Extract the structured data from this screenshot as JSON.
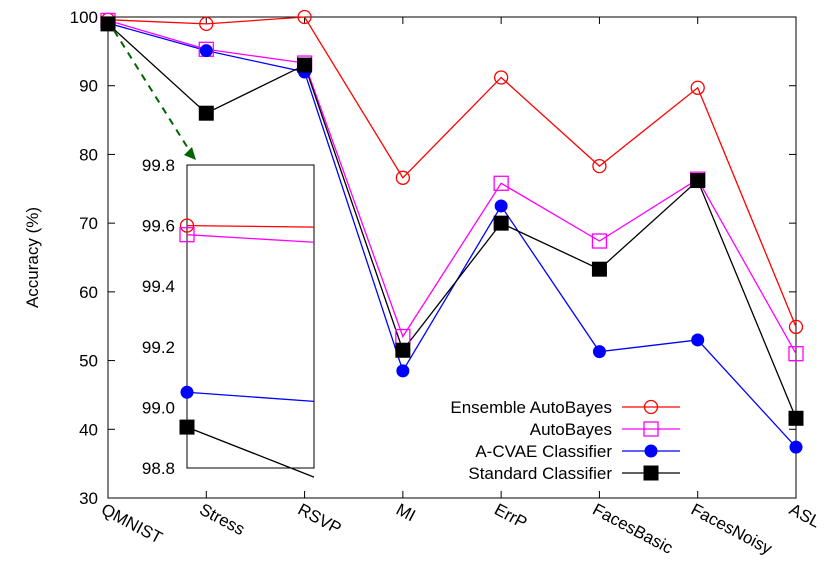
{
  "chart_data": {
    "type": "line",
    "ylabel": "Accuracy (%)",
    "ylim": [
      30,
      100
    ],
    "yticks": [
      "30",
      "40",
      "50",
      "60",
      "70",
      "80",
      "90",
      "100"
    ],
    "categories": [
      "QMNIST",
      "Stress",
      "RSVP",
      "MI",
      "ErrP",
      "FacesBasic",
      "FacesNoisy",
      "ASL"
    ],
    "series": [
      {
        "name": "Ensemble AutoBayes",
        "color": "#ff0000",
        "marker": "open-circle",
        "values": [
          99.6,
          99.0,
          100.0,
          76.6,
          91.2,
          78.3,
          89.7,
          54.9
        ]
      },
      {
        "name": "AutoBayes",
        "color": "#ff00ff",
        "marker": "open-square",
        "values": [
          99.5,
          95.3,
          93.3,
          53.5,
          75.8,
          67.4,
          76.4,
          51.0
        ]
      },
      {
        "name": "A-CVAE Classifier",
        "color": "#0000ff",
        "marker": "filled-circle",
        "values": [
          99.1,
          95.1,
          92.0,
          48.5,
          72.5,
          51.3,
          53.0,
          37.4
        ]
      },
      {
        "name": "Standard Classifier",
        "color": "#000000",
        "marker": "filled-square",
        "values": [
          99.0,
          86.0,
          93.0,
          51.5,
          70.0,
          63.3,
          76.2,
          41.6
        ]
      }
    ],
    "legend_position": "bottom-right",
    "inset": {
      "ylim": [
        98.8,
        99.8
      ],
      "yticks": [
        "98.8",
        "99.0",
        "99.2",
        "99.4",
        "99.6",
        "99.8"
      ],
      "values": [
        [
          99.6,
          99.595
        ],
        [
          99.57,
          99.545
        ],
        [
          99.05,
          99.02
        ],
        [
          98.935,
          98.77
        ]
      ]
    }
  }
}
